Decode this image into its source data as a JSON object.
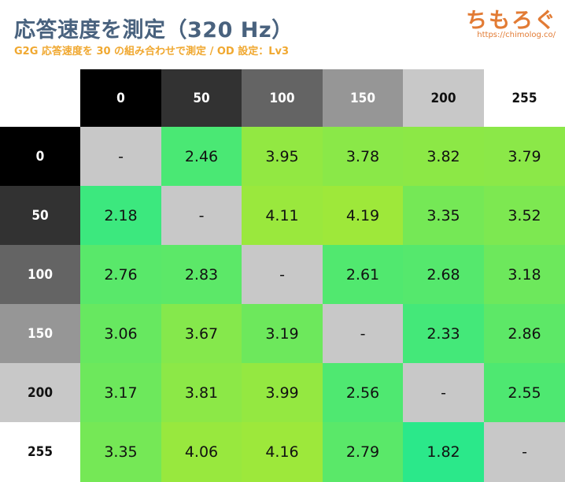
{
  "header": {
    "title": "応答速度を測定（320 Hz）",
    "subtitle": "G2G 応答速度を 30 の組み合わせで測定 / OD 設定：Lv3",
    "logo": "ちもろぐ",
    "logo_url": "https://chimolog.co/"
  },
  "chart_data": {
    "type": "heatmap",
    "title": "応答速度を測定（320 Hz）",
    "subtitle": "G2G 応答速度を 30 の組み合わせで測定 / OD 設定：Lv3",
    "column_labels": [
      "0",
      "50",
      "100",
      "150",
      "200",
      "255"
    ],
    "row_labels": [
      "0",
      "50",
      "100",
      "150",
      "200",
      "255"
    ],
    "values": [
      [
        null,
        2.46,
        3.95,
        3.78,
        3.82,
        3.79
      ],
      [
        2.18,
        null,
        4.11,
        4.19,
        3.35,
        3.52
      ],
      [
        2.76,
        2.83,
        null,
        2.61,
        2.68,
        3.18
      ],
      [
        3.06,
        3.67,
        3.19,
        null,
        2.33,
        2.86
      ],
      [
        3.17,
        3.81,
        3.99,
        2.56,
        null,
        2.55
      ],
      [
        3.35,
        4.06,
        4.16,
        2.79,
        1.82,
        null
      ]
    ],
    "empty_cell_text": "-",
    "header_shade_colors": [
      "#000000",
      "#323232",
      "#646464",
      "#969696",
      "#c8c8c8",
      "#ffffff"
    ],
    "diagonal_color": "#c8c8c8",
    "color_scale": {
      "min": 1.82,
      "max": 4.19,
      "min_color": "#2be88a",
      "max_color": "#9ee83a"
    }
  }
}
